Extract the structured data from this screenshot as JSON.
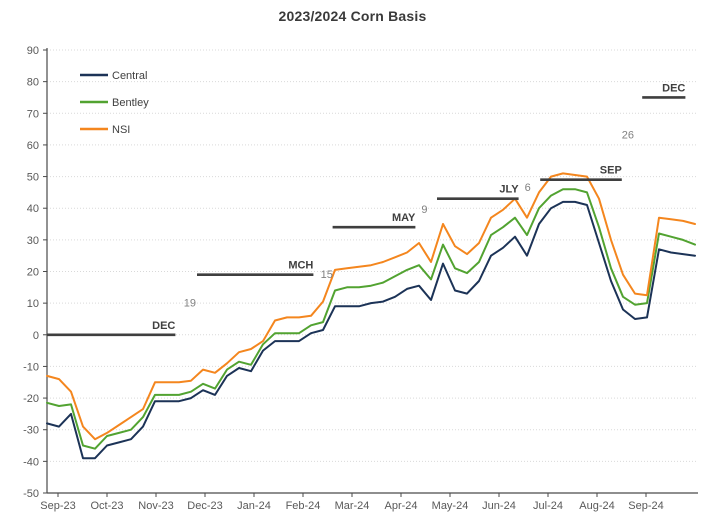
{
  "chart_data": {
    "type": "line",
    "title": "2023/2024 Corn Basis",
    "xlabel": "",
    "ylabel": "",
    "x_unit": "weekly",
    "x_tick_labels": [
      "Sep-23",
      "Oct-23",
      "Nov-23",
      "Dec-23",
      "Jan-24",
      "Feb-24",
      "Mar-24",
      "Apr-24",
      "May-24",
      "Jun-24",
      "Jul-24",
      "Aug-24",
      "Sep-24"
    ],
    "y_axis": {
      "min": -50,
      "max": 90,
      "step": 10
    },
    "grid": true,
    "legend_position": "top-left-inside",
    "series": [
      {
        "name": "Central",
        "color": "#1c3357",
        "values": [
          -28,
          -29,
          -25,
          -39,
          -39,
          -35,
          -34,
          -33,
          -29,
          -21,
          -21,
          -21,
          -20,
          -17.5,
          -19,
          -13,
          -10.5,
          -11.5,
          -5,
          -2,
          -2,
          -2,
          0.5,
          1.5,
          9,
          9,
          9,
          10,
          10.5,
          12,
          14.5,
          15.5,
          11,
          22.5,
          14,
          13,
          17,
          25,
          27.5,
          31,
          25,
          35,
          40,
          42,
          42,
          41,
          29,
          17,
          8,
          5,
          5.5,
          27,
          26,
          25.5,
          25
        ]
      },
      {
        "name": "Bentley",
        "color": "#52a331",
        "values": [
          -21.5,
          -22.5,
          -22,
          -35,
          -36,
          -32,
          -31,
          -30,
          -26,
          -19,
          -19,
          -19,
          -18,
          -15.5,
          -17,
          -11,
          -8.5,
          -9.5,
          -3,
          0.5,
          0.5,
          0.5,
          3,
          4,
          14,
          15,
          15,
          15.5,
          16.5,
          18.5,
          20.5,
          22,
          17.5,
          28.5,
          21,
          19.5,
          23,
          31.5,
          34,
          37,
          31.5,
          40,
          44,
          46,
          46,
          45,
          34,
          21,
          12,
          9.5,
          10,
          32,
          31,
          30,
          28.5
        ]
      },
      {
        "name": "NSI",
        "color": "#f4861e",
        "values": [
          -13,
          -14,
          -18,
          -29,
          -33,
          -31,
          -28.5,
          -26,
          -23.5,
          -15,
          -15,
          -15,
          -14.5,
          -11,
          -12,
          -9,
          -5.5,
          -4.5,
          -2,
          4.5,
          5.5,
          5.5,
          6,
          10.5,
          20.5,
          21,
          21.5,
          22,
          23,
          24.5,
          26,
          29,
          23,
          35,
          28,
          25.5,
          29,
          37,
          39.5,
          43,
          37,
          45,
          50,
          51,
          50.5,
          50,
          43,
          30,
          19,
          13,
          12.5,
          37,
          36.5,
          36,
          35
        ]
      }
    ],
    "contract_segments": [
      {
        "label": "DEC",
        "value": 0,
        "week_start": 0,
        "week_end": 10.7
      },
      {
        "label": "MCH",
        "value": 19,
        "week_start": 12.5,
        "week_end": 22.2
      },
      {
        "label": "MAY",
        "value": 34,
        "week_start": 23.8,
        "week_end": 30.7
      },
      {
        "label": "JLY",
        "value": 43,
        "week_start": 32.5,
        "week_end": 39.3
      },
      {
        "label": "SEP",
        "value": 49,
        "week_start": 41.1,
        "week_end": 47.9
      },
      {
        "label": "DEC",
        "value": 75,
        "week_start": 49.6,
        "week_end": 53.2
      }
    ],
    "carry_annotations": [
      {
        "text": "19",
        "week_x": 11.4,
        "value_y": 9
      },
      {
        "text": "15",
        "week_x": 22.8,
        "value_y": 18
      },
      {
        "text": "9",
        "week_x": 31.2,
        "value_y": 38.5
      },
      {
        "text": "6",
        "week_x": 39.8,
        "value_y": 45.5
      },
      {
        "text": "26",
        "week_x": 47.9,
        "value_y": 62
      }
    ]
  },
  "style_colors": {
    "axis": "#4a4a4a",
    "tick_label": "#595959",
    "gridline": "#d9d9d9",
    "segment_line": "#3f3f3f",
    "segment_label": "#404040",
    "carry_label": "#808080",
    "legend_label": "#404040"
  }
}
